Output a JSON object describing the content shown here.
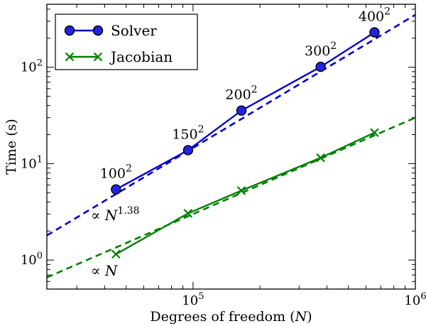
{
  "chart_data": {
    "type": "line",
    "xscale": "log",
    "yscale": "log",
    "xlim": [
      22000,
      1000000
    ],
    "ylim": [
      0.5,
      450
    ],
    "xlabel_text": "Degrees of freedom (",
    "xlabel_var": "N",
    "xlabel_close": ")",
    "ylabel": "Time (s)",
    "xticks": [
      {
        "value": 100000,
        "base": "10",
        "exp": "5"
      },
      {
        "value": 1000000,
        "base": "10",
        "exp": "6"
      }
    ],
    "yticks": [
      {
        "value": 1,
        "base": "10",
        "exp": "0"
      },
      {
        "value": 10,
        "base": "10",
        "exp": "1"
      },
      {
        "value": 100,
        "base": "10",
        "exp": "2"
      }
    ],
    "series": [
      {
        "name": "Solver",
        "color": "#0000d0",
        "marker": "circle",
        "x": [
          45000,
          95000,
          165000,
          375000,
          655000
        ],
        "y": [
          5.4,
          13.8,
          35.5,
          101,
          230
        ],
        "point_labels": [
          {
            "base": "100",
            "exp": "2"
          },
          {
            "base": "150",
            "exp": "2"
          },
          {
            "base": "200",
            "exp": "2"
          },
          {
            "base": "300",
            "exp": "2"
          },
          {
            "base": "400",
            "exp": "2"
          }
        ]
      },
      {
        "name": "Jacobian",
        "color": "#008000",
        "marker": "x",
        "x": [
          45000,
          95000,
          165000,
          375000,
          655000
        ],
        "y": [
          1.15,
          3.05,
          5.25,
          11.5,
          21
        ],
        "point_labels": []
      }
    ],
    "fits": [
      {
        "color": "#0000d0",
        "x": [
          22000,
          1000000
        ],
        "y": [
          1.8,
          350
        ],
        "label_prefix": "∝ ",
        "label_var": "N",
        "label_exp": "1.38"
      },
      {
        "color": "#008000",
        "x": [
          22000,
          1000000
        ],
        "y": [
          0.66,
          30
        ],
        "label_prefix": "∝ ",
        "label_var": "N",
        "label_exp": ""
      }
    ],
    "legend": "top-left",
    "grid": false
  }
}
